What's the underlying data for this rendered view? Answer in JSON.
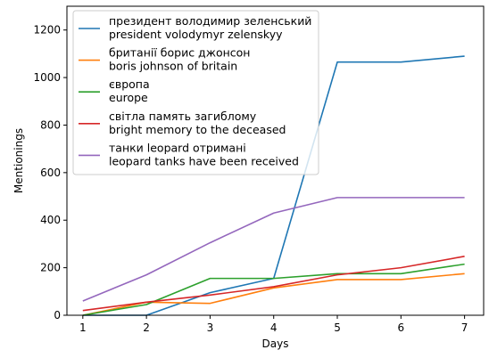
{
  "chart_data": {
    "type": "line",
    "xlabel": "Days",
    "ylabel": "Mentionings",
    "xlim": [
      0.75,
      7.3
    ],
    "ylim": [
      0,
      1300
    ],
    "xticks": [
      1,
      2,
      3,
      4,
      5,
      6,
      7
    ],
    "yticks": [
      0,
      200,
      400,
      600,
      800,
      1000,
      1200
    ],
    "grid": false,
    "legend_position": "top-left",
    "x": [
      1,
      2,
      3,
      4,
      5,
      6,
      7
    ],
    "series": [
      {
        "name": "президент володимир зеленський\npresident volodymyr zelenskyy",
        "color": "#1f77b4",
        "values": [
          0,
          0,
          95,
          155,
          1065,
          1065,
          1090
        ]
      },
      {
        "name": "британії борис джонсон\nboris johnson of britain",
        "color": "#ff7f0e",
        "values": [
          0,
          55,
          50,
          115,
          150,
          150,
          175
        ]
      },
      {
        "name": "європа\neurope",
        "color": "#2ca02c",
        "values": [
          0,
          45,
          155,
          155,
          175,
          175,
          215
        ]
      },
      {
        "name": "світла память загиблому\nbright memory to the deceased",
        "color": "#d62728",
        "values": [
          20,
          55,
          85,
          120,
          170,
          200,
          248
        ]
      },
      {
        "name": "танки leopard отримані\nleopard tanks have been received",
        "color": "#9467bd",
        "values": [
          60,
          170,
          305,
          430,
          495,
          495,
          495
        ]
      }
    ]
  }
}
